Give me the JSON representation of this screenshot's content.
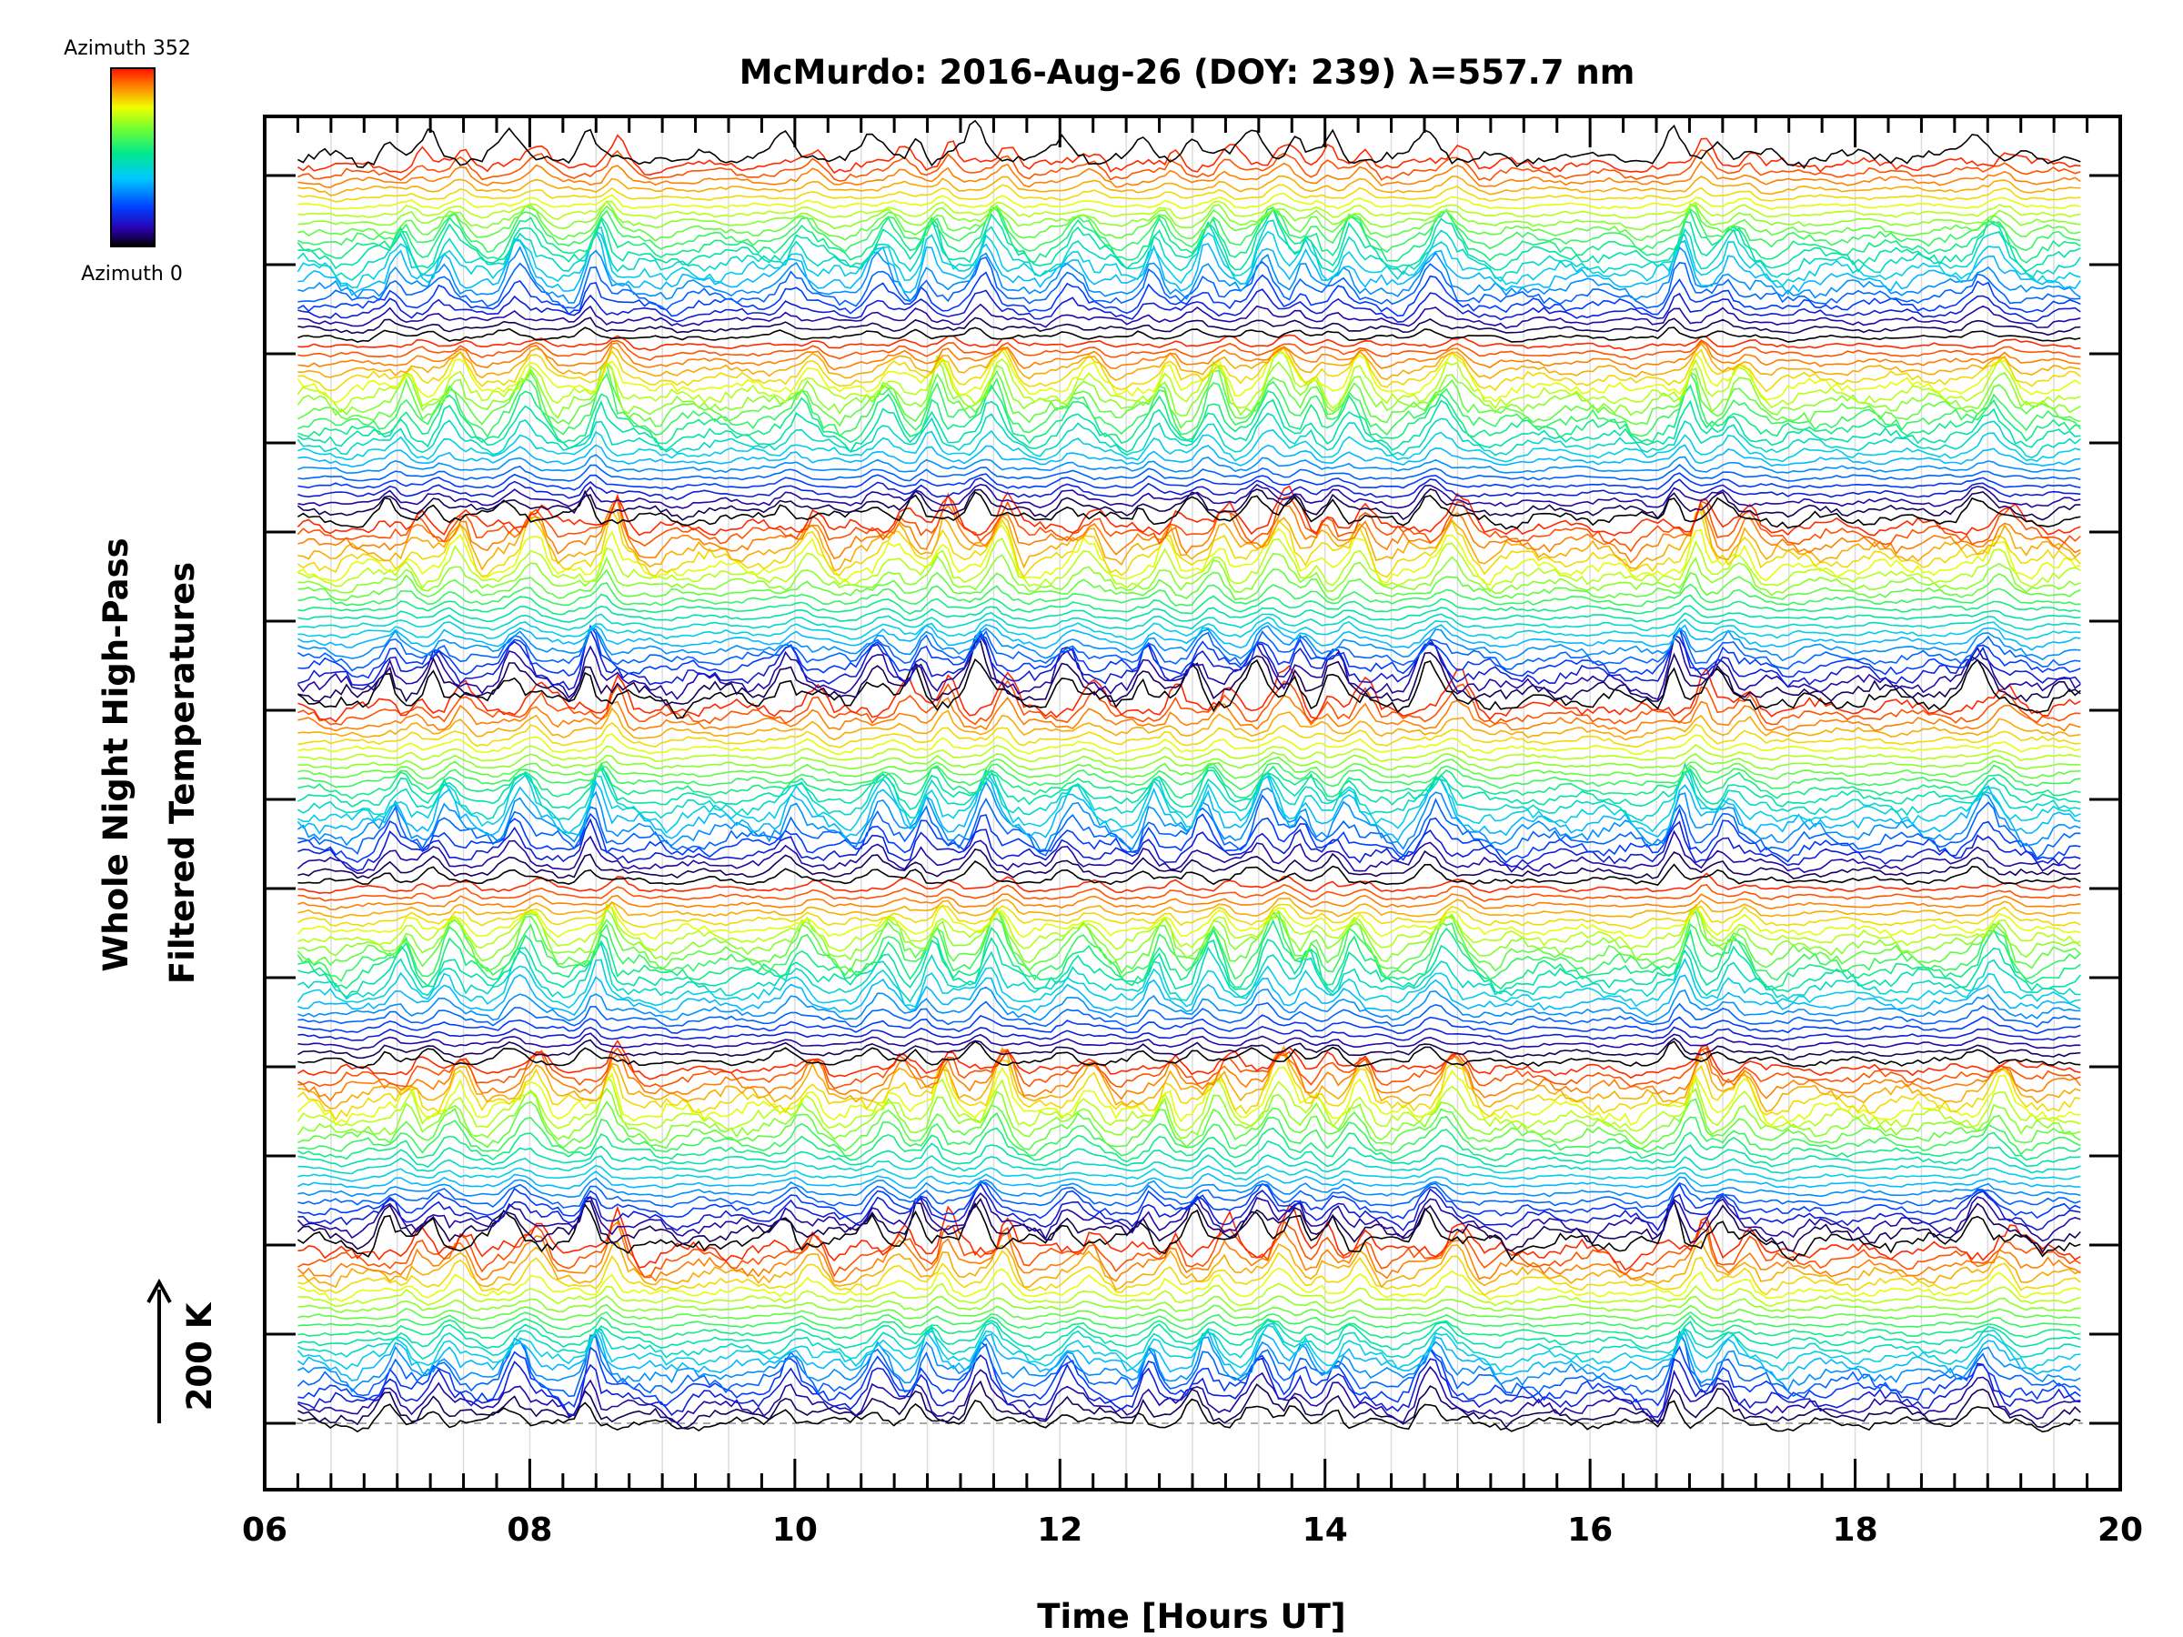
{
  "chart_data": {
    "type": "line",
    "title": "McMurdo: 2016-Aug-26 (DOY: 239) λ=557.7 nm",
    "xlabel": "Time [Hours UT]",
    "ylabel_line1": "Whole Night High-Pass",
    "ylabel_line2": "Filtered Temperatures",
    "xlim": [
      6,
      20
    ],
    "x_tick_labels": [
      "06",
      "08",
      "10",
      "12",
      "14",
      "16",
      "18",
      "20"
    ],
    "x_tick_values": [
      6,
      8,
      10,
      12,
      14,
      16,
      18,
      20
    ],
    "x_data_range": [
      6.25,
      19.7
    ],
    "scale_bar_label": "200 K",
    "scale_bar_kelvin": 200,
    "grid": true,
    "baseline_dashed": true,
    "colorbar": {
      "top_label": "Azimuth  352",
      "bottom_label": "Azimuth  0",
      "min": 0,
      "max": 352,
      "colormap": "rainbow"
    },
    "stack": {
      "groups": 7,
      "traces_per_group": 22,
      "extra_traces": 1,
      "description_note": "stacked traces offset upward; color encodes azimuth"
    },
    "common_peaks_hours": [
      7.05,
      7.4,
      7.97,
      8.55,
      10.05,
      10.7,
      11.05,
      11.5,
      12.15,
      12.75,
      13.15,
      13.6,
      13.9,
      14.2,
      14.9,
      16.75,
      17.1,
      19.05
    ],
    "common_troughs_hours": [
      6.6,
      7.22,
      7.7,
      8.25,
      9.0,
      10.4,
      10.85,
      11.8,
      12.5,
      12.95,
      13.35,
      14.05,
      14.5,
      15.3,
      16.4,
      17.4,
      19.3
    ]
  }
}
